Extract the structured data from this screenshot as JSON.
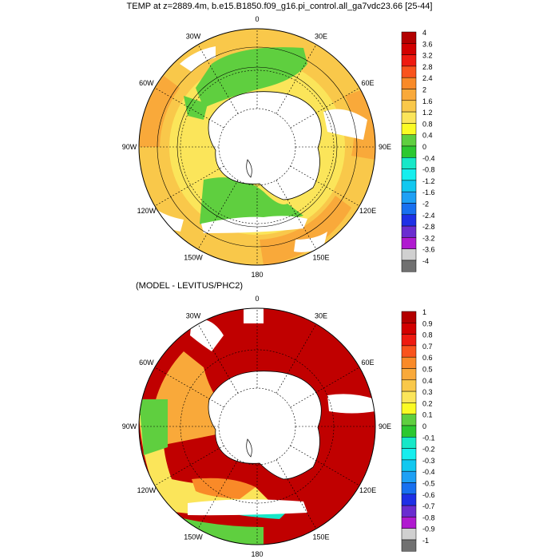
{
  "panels": [
    {
      "title": "TEMP at z=2889.4m, b.e15.B1850.f09_g16.pi_control.all_ga7vdc23.66 [25-44]",
      "longitude_labels": [
        "0",
        "30E",
        "60E",
        "90E",
        "120E",
        "150E",
        "180",
        "150W",
        "120W",
        "90W",
        "60W",
        "30W"
      ],
      "colorbar": {
        "labels": [
          "4",
          "3.6",
          "3.2",
          "2.8",
          "2.4",
          "2",
          "1.6",
          "1.2",
          "0.8",
          "0.4",
          "0",
          "-0.4",
          "-0.8",
          "-1.2",
          "-1.6",
          "-2",
          "-2.4",
          "-2.8",
          "-3.2",
          "-3.6",
          "-4"
        ],
        "colors": [
          "#b30000",
          "#d20000",
          "#ee1a10",
          "#f9531c",
          "#f98a28",
          "#f9a93a",
          "#f9c84a",
          "#fbe55a",
          "#fbfb24",
          "#5fcf3f",
          "#2cc830",
          "#16e8c8",
          "#16eeee",
          "#12c8f0",
          "#1ea0f5",
          "#1870f0",
          "#1e30e6",
          "#6a2cd0",
          "#b01ad0",
          "#d0d0d0",
          "#707070"
        ]
      },
      "zones": [
        {
          "name": "outer",
          "color": "#f9c84a"
        },
        {
          "name": "middle",
          "color": "#fbe55a"
        },
        {
          "name": "inner",
          "color": "#5fcf3f"
        },
        {
          "name": "rim",
          "color": "#f9a93a"
        }
      ]
    },
    {
      "title": "(MODEL - LEVITUS/PHC2)",
      "longitude_labels": [
        "0",
        "30E",
        "60E",
        "90E",
        "120E",
        "150E",
        "180",
        "150W",
        "120W",
        "90W",
        "60W",
        "30W"
      ],
      "colorbar": {
        "labels": [
          "1",
          "0.9",
          "0.8",
          "0.7",
          "0.6",
          "0.5",
          "0.4",
          "0.3",
          "0.2",
          "0.1",
          "0",
          "-0.1",
          "-0.2",
          "-0.3",
          "-0.4",
          "-0.5",
          "-0.6",
          "-0.7",
          "-0.8",
          "-0.9",
          "-1"
        ],
        "colors": [
          "#b30000",
          "#d20000",
          "#ee1a10",
          "#f9531c",
          "#f98a28",
          "#f9a93a",
          "#f9c84a",
          "#fbe55a",
          "#fbfb24",
          "#5fcf3f",
          "#2cc830",
          "#16e8c8",
          "#16eeee",
          "#12c8f0",
          "#1ea0f5",
          "#1870f0",
          "#1e30e6",
          "#6a2cd0",
          "#b01ad0",
          "#d0d0d0",
          "#707070"
        ]
      },
      "zones": [
        {
          "name": "east",
          "color": "#c00000"
        },
        {
          "name": "west",
          "color": "#f9a93a"
        },
        {
          "name": "shelf",
          "color": "#fbe55a"
        },
        {
          "name": "edge",
          "color": "#5fcf3f"
        }
      ]
    }
  ]
}
